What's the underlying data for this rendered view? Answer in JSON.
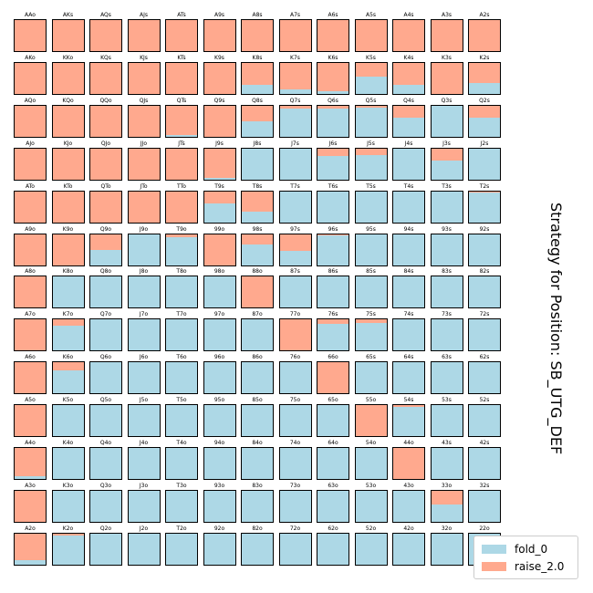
{
  "chart_data": {
    "type": "grid-stacked-bar",
    "title": "Strategy for Position: SB_UTG_DEF",
    "legend": [
      {
        "name": "fold_0",
        "color": "#add8e6"
      },
      {
        "name": "raise_2.0",
        "color": "#ffa98e"
      }
    ],
    "legend_position": "bottom-right",
    "ranks": [
      "A",
      "K",
      "Q",
      "J",
      "T",
      "9",
      "8",
      "7",
      "6",
      "5",
      "4",
      "3",
      "2"
    ],
    "hands": [
      [
        "AAo",
        "AKs",
        "AQs",
        "AJs",
        "ATs",
        "A9s",
        "A8s",
        "A7s",
        "A6s",
        "A5s",
        "A4s",
        "A3s",
        "A2s"
      ],
      [
        "AKo",
        "KKo",
        "KQs",
        "KJs",
        "KTs",
        "K9s",
        "K8s",
        "K7s",
        "K6s",
        "K5s",
        "K4s",
        "K3s",
        "K2s"
      ],
      [
        "AQo",
        "KQo",
        "QQo",
        "QJs",
        "QTs",
        "Q9s",
        "Q8s",
        "Q7s",
        "Q6s",
        "Q5s",
        "Q4s",
        "Q3s",
        "Q2s"
      ],
      [
        "AJo",
        "KJo",
        "QJo",
        "JJo",
        "JTs",
        "J9s",
        "J8s",
        "J7s",
        "J6s",
        "J5s",
        "J4s",
        "J3s",
        "J2s"
      ],
      [
        "ATo",
        "KTo",
        "QTo",
        "JTo",
        "TTo",
        "T9s",
        "T8s",
        "T7s",
        "T6s",
        "T5s",
        "T4s",
        "T3s",
        "T2s"
      ],
      [
        "A9o",
        "K9o",
        "Q9o",
        "J9o",
        "T9o",
        "99o",
        "98s",
        "97s",
        "96s",
        "95s",
        "94s",
        "93s",
        "92s"
      ],
      [
        "A8o",
        "K8o",
        "Q8o",
        "J8o",
        "T8o",
        "98o",
        "88o",
        "87s",
        "86s",
        "85s",
        "84s",
        "83s",
        "82s"
      ],
      [
        "A7o",
        "K7o",
        "Q7o",
        "J7o",
        "T7o",
        "97o",
        "87o",
        "77o",
        "76s",
        "75s",
        "74s",
        "73s",
        "72s"
      ],
      [
        "A6o",
        "K6o",
        "Q6o",
        "J6o",
        "T6o",
        "96o",
        "86o",
        "76o",
        "66o",
        "65s",
        "64s",
        "63s",
        "62s"
      ],
      [
        "A5o",
        "K5o",
        "Q5o",
        "J5o",
        "T5o",
        "95o",
        "85o",
        "75o",
        "65o",
        "55o",
        "54s",
        "53s",
        "52s"
      ],
      [
        "A4o",
        "K4o",
        "Q4o",
        "J4o",
        "T4o",
        "94o",
        "84o",
        "74o",
        "64o",
        "54o",
        "44o",
        "43s",
        "42s"
      ],
      [
        "A3o",
        "K3o",
        "Q3o",
        "J3o",
        "T3o",
        "93o",
        "83o",
        "73o",
        "63o",
        "53o",
        "43o",
        "33o",
        "32s"
      ],
      [
        "A2o",
        "K2o",
        "Q2o",
        "J2o",
        "T2o",
        "92o",
        "82o",
        "72o",
        "62o",
        "52o",
        "42o",
        "32o",
        "22o"
      ]
    ],
    "fold_0": [
      [
        0.0,
        0.0,
        0.0,
        0.0,
        0.0,
        0.0,
        0.0,
        0.0,
        0.0,
        0.0,
        0.0,
        0.0,
        0.0
      ],
      [
        0.0,
        0.0,
        0.0,
        0.0,
        0.0,
        0.0,
        0.3,
        0.15,
        0.1,
        0.55,
        0.3,
        0.0,
        0.35
      ],
      [
        0.0,
        0.0,
        0.0,
        0.0,
        0.05,
        0.0,
        0.5,
        0.9,
        0.9,
        0.95,
        0.6,
        1.0,
        0.6
      ],
      [
        0.0,
        0.0,
        0.0,
        0.0,
        0.0,
        0.05,
        1.0,
        1.0,
        0.75,
        0.8,
        1.0,
        0.6,
        1.0
      ],
      [
        0.0,
        0.0,
        0.0,
        0.0,
        0.0,
        0.6,
        0.35,
        1.0,
        1.0,
        1.0,
        1.0,
        1.0,
        0.95
      ],
      [
        0.0,
        0.0,
        0.5,
        1.0,
        0.9,
        0.0,
        0.65,
        0.45,
        0.95,
        1.0,
        1.0,
        1.0,
        1.0
      ],
      [
        0.0,
        1.0,
        1.0,
        1.0,
        1.0,
        1.0,
        0.0,
        1.0,
        1.0,
        1.0,
        1.0,
        1.0,
        1.0
      ],
      [
        0.0,
        0.8,
        1.0,
        1.0,
        1.0,
        1.0,
        1.0,
        0.0,
        0.85,
        0.9,
        1.0,
        1.0,
        1.0
      ],
      [
        0.0,
        0.75,
        1.0,
        1.0,
        1.0,
        1.0,
        1.0,
        1.0,
        0.0,
        1.0,
        1.0,
        1.0,
        1.0
      ],
      [
        0.0,
        1.0,
        1.0,
        1.0,
        1.0,
        1.0,
        1.0,
        1.0,
        1.0,
        0.0,
        0.95,
        1.0,
        1.0
      ],
      [
        0.1,
        1.0,
        1.0,
        1.0,
        1.0,
        1.0,
        1.0,
        1.0,
        1.0,
        1.0,
        0.0,
        1.0,
        1.0
      ],
      [
        0.0,
        1.0,
        1.0,
        1.0,
        1.0,
        1.0,
        1.0,
        1.0,
        1.0,
        1.0,
        1.0,
        0.55,
        1.0
      ],
      [
        0.15,
        0.95,
        1.0,
        1.0,
        1.0,
        1.0,
        1.0,
        1.0,
        1.0,
        1.0,
        1.0,
        1.0,
        1.0
      ]
    ]
  }
}
